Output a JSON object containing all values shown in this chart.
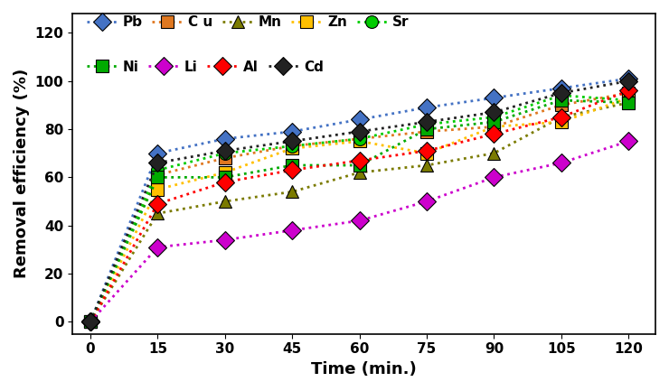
{
  "x": [
    0,
    15,
    30,
    45,
    60,
    75,
    90,
    105,
    120
  ],
  "series": [
    {
      "label": "Pb",
      "color": "#4472C4",
      "marker": "D",
      "values": [
        0,
        70,
        76,
        79,
        84,
        89,
        93,
        97,
        101
      ]
    },
    {
      "label": "C u",
      "color": "#E07820",
      "marker": "s",
      "values": [
        0,
        61,
        68,
        73,
        76,
        79,
        81,
        90,
        95
      ]
    },
    {
      "label": "Mn",
      "color": "#7B7B00",
      "marker": "^",
      "values": [
        0,
        45,
        50,
        54,
        62,
        65,
        70,
        85,
        91
      ]
    },
    {
      "label": "Zn",
      "color": "#FFC000",
      "marker": "s",
      "values": [
        0,
        55,
        62,
        72,
        75,
        70,
        81,
        83,
        93
      ]
    },
    {
      "label": "Sr",
      "color": "#00CC00",
      "marker": "o",
      "values": [
        0,
        63,
        70,
        73,
        76,
        82,
        85,
        94,
        92
      ]
    },
    {
      "label": "Ni",
      "color": "#00AA00",
      "marker": "s",
      "values": [
        0,
        60,
        60,
        65,
        65,
        80,
        83,
        92,
        91
      ]
    },
    {
      "label": "Li",
      "color": "#CC00CC",
      "marker": "D",
      "values": [
        0,
        31,
        34,
        38,
        42,
        50,
        60,
        66,
        75
      ]
    },
    {
      "label": "Al",
      "color": "#FF0000",
      "marker": "D",
      "values": [
        0,
        49,
        58,
        63,
        67,
        71,
        78,
        85,
        96
      ]
    },
    {
      "label": "Cd",
      "color": "#222222",
      "marker": "D",
      "values": [
        0,
        66,
        71,
        75,
        79,
        83,
        87,
        95,
        100
      ]
    }
  ],
  "legend_row1": [
    "Pb",
    "C u",
    "Mn",
    "Zn",
    "Sr"
  ],
  "legend_row2": [
    "Ni",
    "Li",
    "Al",
    "Cd"
  ],
  "xlabel": "Time (min.)",
  "ylabel": "Removal efficiency (%)",
  "xlim": [
    -4,
    126
  ],
  "ylim": [
    -5,
    128
  ],
  "xticks": [
    0,
    15,
    30,
    45,
    60,
    75,
    90,
    105,
    120
  ],
  "yticks": [
    0,
    20,
    40,
    60,
    80,
    100,
    120
  ],
  "axis_label_fontsize": 13,
  "tick_fontsize": 11,
  "legend_fontsize": 11,
  "markersize": 10,
  "linewidth": 2.0
}
